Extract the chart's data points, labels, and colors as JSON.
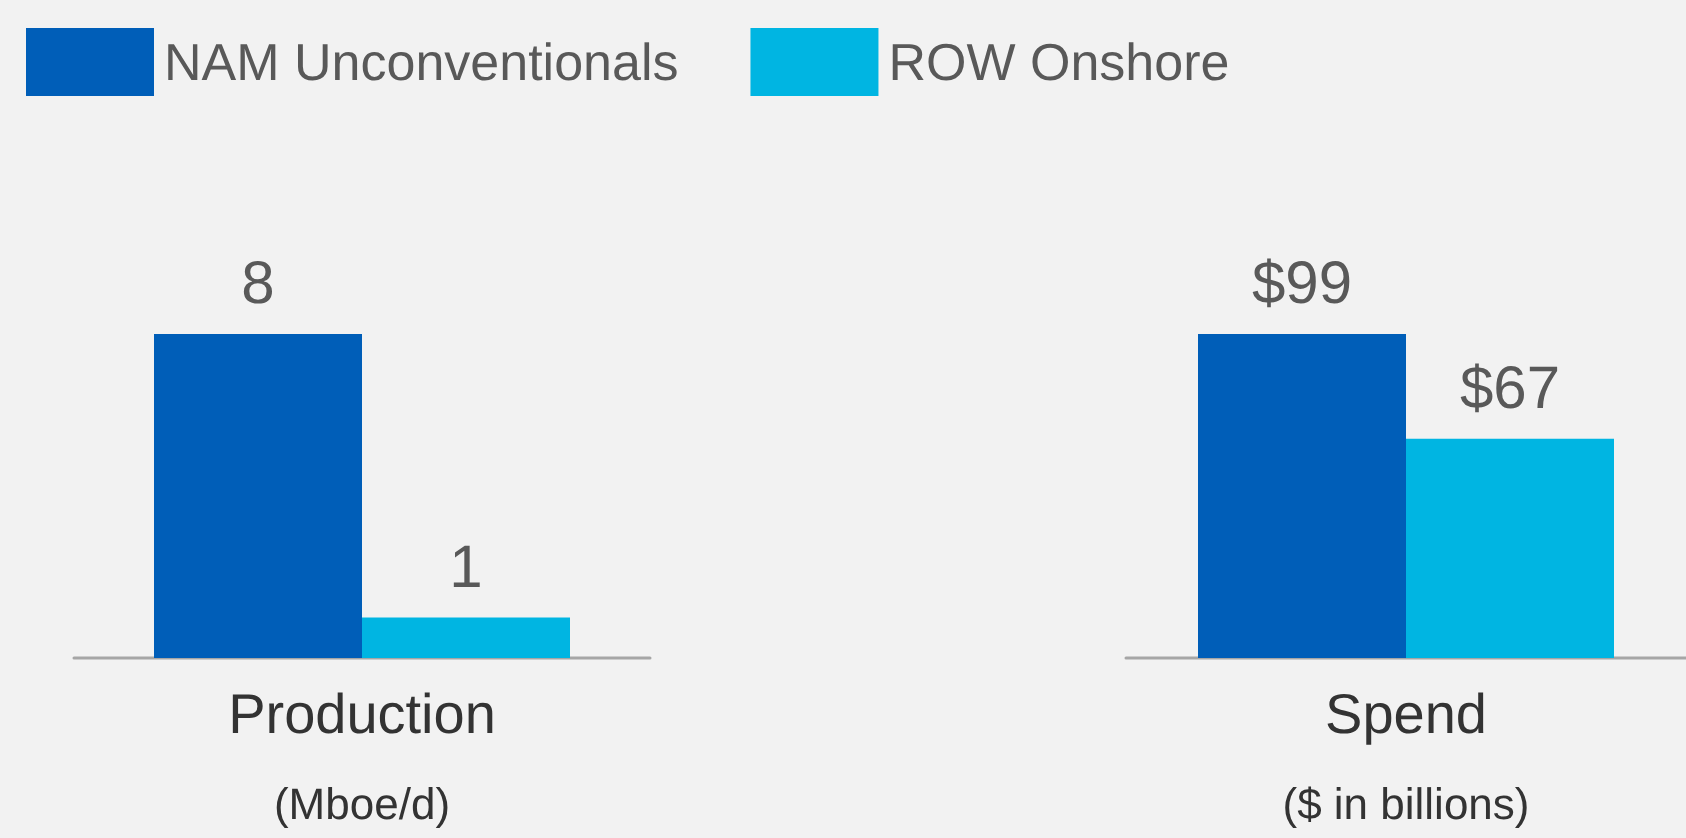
{
  "chart_data": [
    {
      "type": "bar",
      "categories": [
        "Production"
      ],
      "xlabel": "(Mboe/d)",
      "data_labels": true,
      "legend": "top",
      "series": [
        {
          "name": "NAM Unconventionals",
          "color": "#005eb8",
          "values": [
            8
          ]
        },
        {
          "name": "ROW Onshore",
          "color": "#00b5e2",
          "values": [
            1
          ]
        }
      ]
    },
    {
      "type": "bar",
      "categories": [
        "Spend"
      ],
      "xlabel": "($ in billions)",
      "series": [
        {
          "color": "#005eb8",
          "values": [
            99
          ],
          "value_labels": [
            "$99"
          ]
        },
        {
          "color": "#00b5e2",
          "values": [
            67
          ],
          "value_labels": [
            "$67"
          ]
        }
      ]
    }
  ]
}
